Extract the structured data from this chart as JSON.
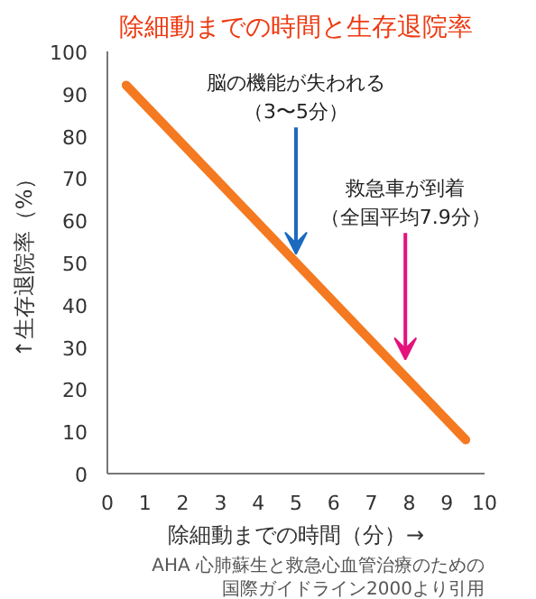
{
  "chart_data": {
    "type": "line",
    "title": "除細動までの時間と生存退院率",
    "xlabel": "除細動までの時間（分）→",
    "ylabel": "↑生存退院率（%）",
    "x": [
      0.5,
      9.5
    ],
    "series": [
      {
        "color": "#f47920",
        "values": [
          92,
          8
        ]
      }
    ],
    "xlim": [
      0,
      10
    ],
    "xticks": [
      0,
      1,
      2,
      3,
      4,
      5,
      6,
      7,
      8,
      9,
      10
    ],
    "ylim": [
      0,
      100
    ],
    "yticks": [
      0,
      10,
      20,
      30,
      40,
      50,
      60,
      70,
      80,
      90,
      100
    ],
    "grid": false,
    "marker": "none",
    "line_style": "solid",
    "annotations": [
      {
        "text": "脳の機能が失われる（3〜5分）",
        "x": 5,
        "y": 52
      },
      {
        "text": "救急車が到着（全国平均7.9分）",
        "x": 7.9,
        "y": 27
      },
      "AHA 心肺蘇生と救急心血管治療のための",
      "国際ガイドライン2000より引用"
    ]
  }
}
